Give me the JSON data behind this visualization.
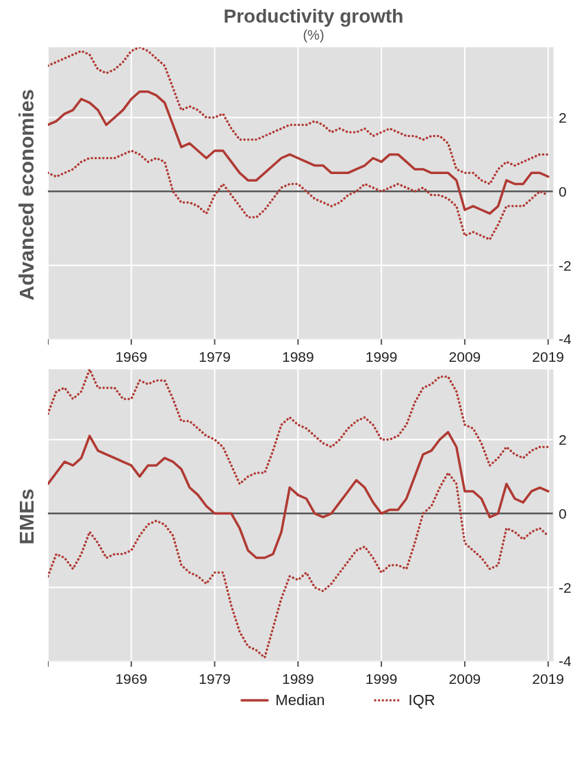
{
  "chart_data": [
    {
      "type": "line",
      "title": "Productivity growth",
      "subtitle": "(%)",
      "ylabel": "Advanced economies",
      "x": [
        1959,
        1960,
        1961,
        1962,
        1963,
        1964,
        1965,
        1966,
        1967,
        1968,
        1969,
        1970,
        1971,
        1972,
        1973,
        1974,
        1975,
        1976,
        1977,
        1978,
        1979,
        1980,
        1981,
        1982,
        1983,
        1984,
        1985,
        1986,
        1987,
        1988,
        1989,
        1990,
        1991,
        1992,
        1993,
        1994,
        1995,
        1996,
        1997,
        1998,
        1999,
        2000,
        2001,
        2002,
        2003,
        2004,
        2005,
        2006,
        2007,
        2008,
        2009,
        2010,
        2011,
        2012,
        2013,
        2014,
        2015,
        2016,
        2017,
        2018,
        2019
      ],
      "series": [
        {
          "color": "#b03a33",
          "line_style": "solid",
          "values": [
            1.8,
            1.9,
            2.1,
            2.2,
            2.5,
            2.4,
            2.2,
            1.8,
            2.0,
            2.2,
            2.5,
            2.7,
            2.7,
            2.6,
            2.4,
            1.8,
            1.2,
            1.3,
            1.1,
            0.9,
            1.1,
            1.1,
            0.8,
            0.5,
            0.3,
            0.3,
            0.5,
            0.7,
            0.9,
            1.0,
            0.9,
            0.8,
            0.7,
            0.7,
            0.5,
            0.5,
            0.5,
            0.6,
            0.7,
            0.9,
            0.8,
            1.0,
            1.0,
            0.8,
            0.6,
            0.6,
            0.5,
            0.5,
            0.5,
            0.3,
            -0.5,
            -0.4,
            -0.5,
            -0.6,
            -0.4,
            0.3,
            0.2,
            0.2,
            0.5,
            0.5,
            0.4
          ]
        },
        {
          "color": "#b03a33",
          "line_style": "dotted",
          "values": [
            3.4,
            3.5,
            3.6,
            3.7,
            3.8,
            3.7,
            3.3,
            3.2,
            3.3,
            3.5,
            3.8,
            3.9,
            3.8,
            3.6,
            3.4,
            2.8,
            2.2,
            2.3,
            2.2,
            2.0,
            2.0,
            2.1,
            1.7,
            1.4,
            1.4,
            1.4,
            1.5,
            1.6,
            1.7,
            1.8,
            1.8,
            1.8,
            1.9,
            1.8,
            1.6,
            1.7,
            1.6,
            1.6,
            1.7,
            1.5,
            1.6,
            1.7,
            1.6,
            1.5,
            1.5,
            1.4,
            1.5,
            1.5,
            1.3,
            0.6,
            0.5,
            0.5,
            0.3,
            0.2,
            0.6,
            0.8,
            0.7,
            0.8,
            0.9,
            1.0,
            1.0
          ]
        },
        {
          "color": "#b03a33",
          "line_style": "dotted",
          "values": [
            0.5,
            0.4,
            0.5,
            0.6,
            0.8,
            0.9,
            0.9,
            0.9,
            0.9,
            1.0,
            1.1,
            1.0,
            0.8,
            0.9,
            0.8,
            0.0,
            -0.3,
            -0.3,
            -0.4,
            -0.6,
            -0.1,
            0.2,
            -0.1,
            -0.4,
            -0.7,
            -0.7,
            -0.5,
            -0.2,
            0.1,
            0.2,
            0.2,
            0.0,
            -0.2,
            -0.3,
            -0.4,
            -0.3,
            -0.1,
            0.0,
            0.2,
            0.1,
            0.0,
            0.1,
            0.2,
            0.1,
            0.0,
            0.1,
            -0.1,
            -0.1,
            -0.2,
            -0.4,
            -1.2,
            -1.1,
            -1.2,
            -1.3,
            -0.9,
            -0.4,
            -0.4,
            -0.4,
            -0.2,
            0.0,
            -0.1
          ]
        }
      ],
      "xlim": [
        1959,
        2019.6
      ],
      "xticks": [
        {
          "value": 1959,
          "label": null
        },
        1969,
        1979,
        1989,
        1999,
        2009,
        2019
      ],
      "ylim": [
        -4,
        3.9
      ],
      "yticks": [
        -4,
        -2,
        0,
        2
      ],
      "grid": true,
      "ref_lines": [
        {
          "axis": "y",
          "value": 0,
          "color": "#555555"
        }
      ]
    },
    {
      "type": "line",
      "ylabel": "EMEs",
      "x": [
        1959,
        1960,
        1961,
        1962,
        1963,
        1964,
        1965,
        1966,
        1967,
        1968,
        1969,
        1970,
        1971,
        1972,
        1973,
        1974,
        1975,
        1976,
        1977,
        1978,
        1979,
        1980,
        1981,
        1982,
        1983,
        1984,
        1985,
        1986,
        1987,
        1988,
        1989,
        1990,
        1991,
        1992,
        1993,
        1994,
        1995,
        1996,
        1997,
        1998,
        1999,
        2000,
        2001,
        2002,
        2003,
        2004,
        2005,
        2006,
        2007,
        2008,
        2009,
        2010,
        2011,
        2012,
        2013,
        2014,
        2015,
        2016,
        2017,
        2018,
        2019
      ],
      "series": [
        {
          "name": "Median",
          "color": "#b03a33",
          "line_style": "solid",
          "values": [
            0.8,
            1.1,
            1.4,
            1.3,
            1.5,
            2.1,
            1.7,
            1.6,
            1.5,
            1.4,
            1.3,
            1.0,
            1.3,
            1.3,
            1.5,
            1.4,
            1.2,
            0.7,
            0.5,
            0.2,
            0.0,
            0.0,
            0.0,
            -0.4,
            -1.0,
            -1.2,
            -1.2,
            -1.1,
            -0.5,
            0.7,
            0.5,
            0.4,
            0.0,
            -0.1,
            0.0,
            0.3,
            0.6,
            0.9,
            0.7,
            0.3,
            0.0,
            0.1,
            0.1,
            0.4,
            1.0,
            1.6,
            1.7,
            2.0,
            2.2,
            1.8,
            0.6,
            0.6,
            0.4,
            -0.1,
            0.0,
            0.8,
            0.4,
            0.3,
            0.6,
            0.7,
            0.6
          ]
        },
        {
          "name": "IQR",
          "color": "#b03a33",
          "line_style": "dotted",
          "values": [
            2.7,
            3.3,
            3.4,
            3.1,
            3.3,
            3.9,
            3.4,
            3.4,
            3.4,
            3.1,
            3.1,
            3.6,
            3.5,
            3.6,
            3.6,
            3.1,
            2.5,
            2.5,
            2.3,
            2.1,
            2.0,
            1.8,
            1.3,
            0.8,
            1.0,
            1.1,
            1.1,
            1.7,
            2.4,
            2.6,
            2.4,
            2.3,
            2.1,
            1.9,
            1.8,
            2.0,
            2.3,
            2.5,
            2.6,
            2.4,
            2.0,
            2.0,
            2.1,
            2.4,
            3.0,
            3.4,
            3.5,
            3.7,
            3.7,
            3.3,
            2.4,
            2.3,
            1.9,
            1.3,
            1.5,
            1.8,
            1.6,
            1.5,
            1.7,
            1.8,
            1.8
          ]
        },
        {
          "color": "#b03a33",
          "line_style": "dotted",
          "values": [
            -1.7,
            -1.1,
            -1.2,
            -1.5,
            -1.1,
            -0.5,
            -0.8,
            -1.2,
            -1.1,
            -1.1,
            -1.0,
            -0.6,
            -0.3,
            -0.2,
            -0.3,
            -0.6,
            -1.4,
            -1.6,
            -1.7,
            -1.9,
            -1.6,
            -1.6,
            -2.5,
            -3.2,
            -3.6,
            -3.7,
            -3.9,
            -3.1,
            -2.3,
            -1.7,
            -1.8,
            -1.6,
            -2.0,
            -2.1,
            -1.9,
            -1.6,
            -1.3,
            -1.0,
            -0.9,
            -1.2,
            -1.6,
            -1.4,
            -1.4,
            -1.5,
            -0.8,
            0.0,
            0.2,
            0.7,
            1.1,
            0.8,
            -0.8,
            -1.0,
            -1.2,
            -1.5,
            -1.4,
            -0.4,
            -0.5,
            -0.7,
            -0.5,
            -0.4,
            -0.6
          ]
        }
      ],
      "xlim": [
        1959,
        2019.6
      ],
      "xticks": [
        {
          "value": 1959,
          "label": null
        },
        1969,
        1979,
        1989,
        1999,
        2009,
        2019
      ],
      "ylim": [
        -4,
        3.9
      ],
      "yticks": [
        -4,
        -2,
        0,
        2
      ],
      "grid": true,
      "legend": "bottom",
      "ref_lines": [
        {
          "axis": "y",
          "value": 0,
          "color": "#555555"
        }
      ]
    }
  ]
}
